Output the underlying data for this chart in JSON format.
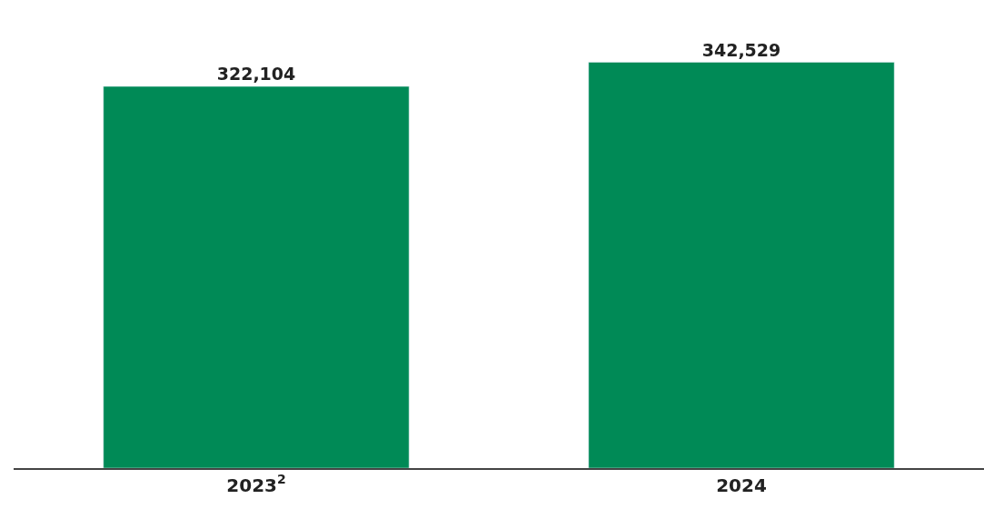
{
  "chart_data": {
    "type": "bar",
    "categories": [
      "2023$^{2}$",
      "2024"
    ],
    "values": [
      322104,
      342529
    ],
    "value_labels": [
      "322,104",
      "342,529"
    ],
    "color": "#008a56"
  }
}
